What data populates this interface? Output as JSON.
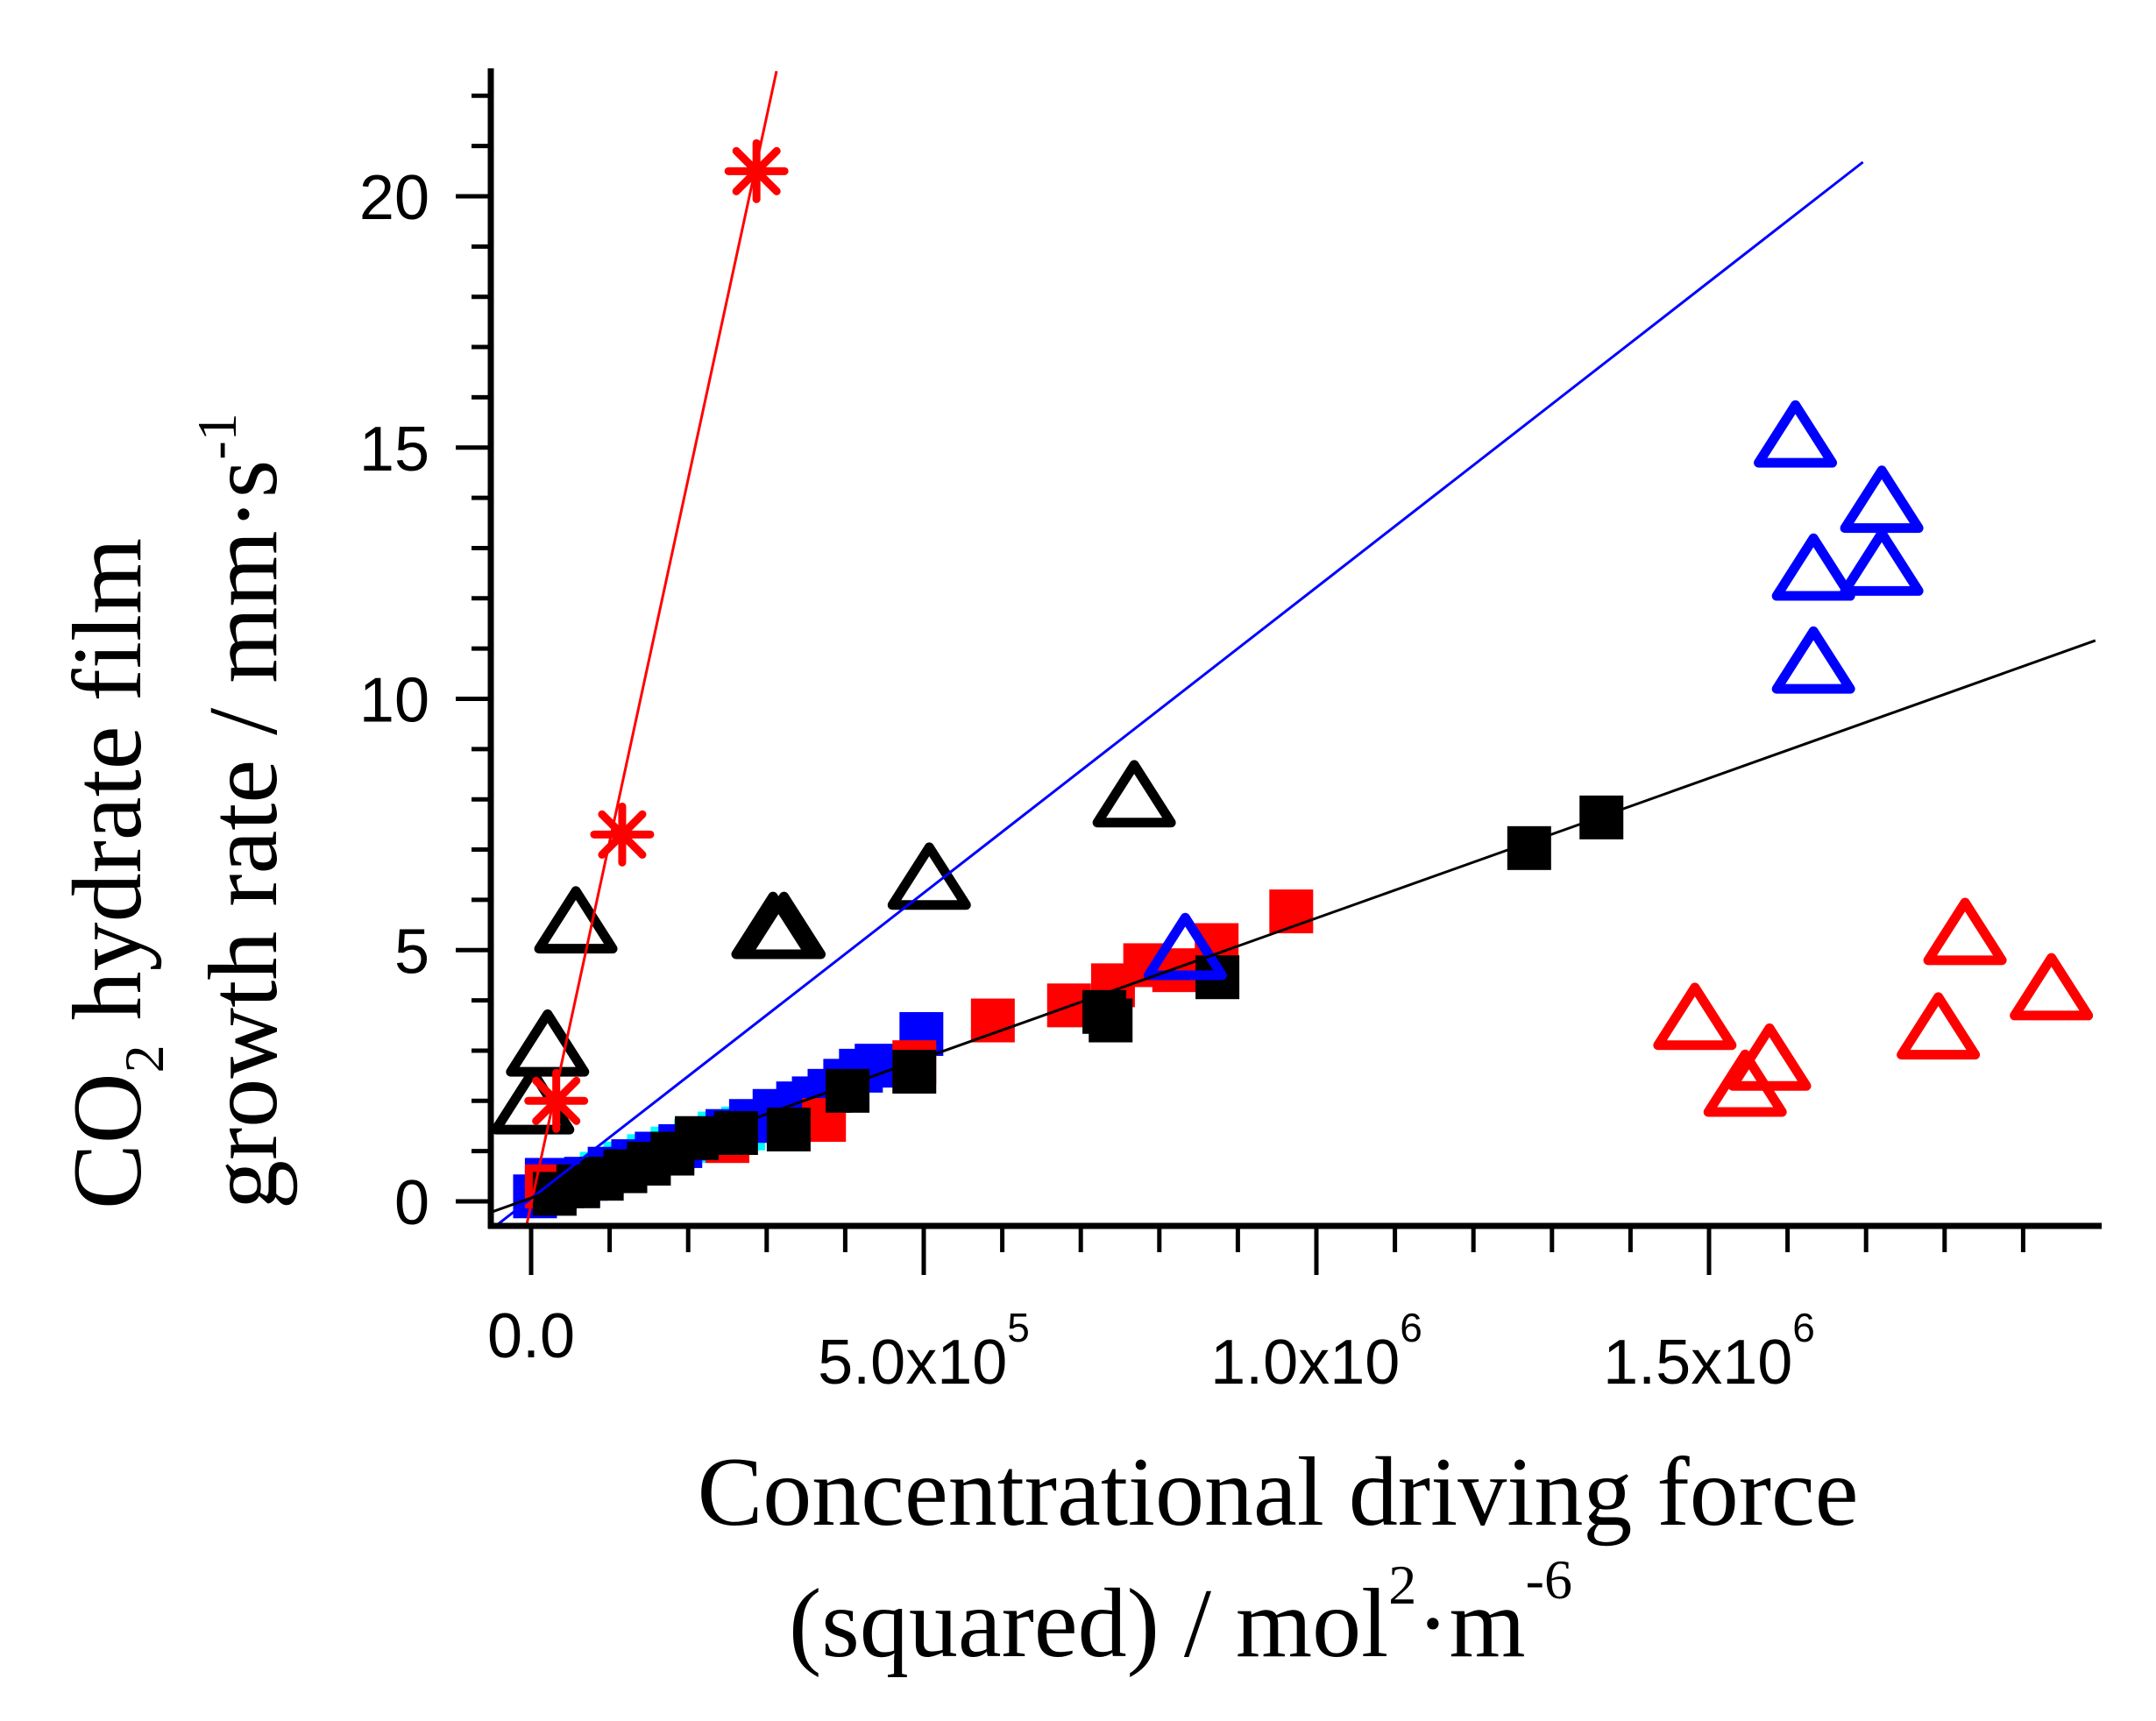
{
  "chart_data": {
    "type": "scatter",
    "title": "",
    "xlabel": "Concentrational driving force (squared) / mol²·m⁻⁶",
    "ylabel": "CO₂ hydrate film growth rate / mm·s⁻¹",
    "xlabel_parts": {
      "line1": "Concentrational driving force",
      "line2_main": "(squared) / mol",
      "line2_sup1": "2",
      "line2_dot": "·m",
      "line2_sup2": "-6"
    },
    "ylabel_parts": {
      "line1_main": "CO",
      "line1_sub": "2",
      "line1_rest": " hydrate film",
      "line2_main": "growth rate / mm·s",
      "line2_sup": "-1"
    },
    "xlim": [
      -50000,
      1990000
    ],
    "ylim": [
      -0.5,
      22.5
    ],
    "x_major_ticks": [
      0,
      500000,
      1000000,
      1500000
    ],
    "x_tick_labels": [
      {
        "mantissa": "0.0",
        "exp": ""
      },
      {
        "mantissa": "5.0x10",
        "exp": "5"
      },
      {
        "mantissa": "1.0x10",
        "exp": "6"
      },
      {
        "mantissa": "1.5x10",
        "exp": "6"
      }
    ],
    "x_minor_step": 100000,
    "y_major_ticks": [
      0,
      5,
      10,
      15,
      20
    ],
    "y_tick_labels": [
      "0",
      "5",
      "10",
      "15",
      "20"
    ],
    "y_minor_step": 1,
    "grid": false,
    "legend": "none",
    "fit_lines": [
      {
        "name": "red-fit",
        "color": "#ff0000",
        "x": [
          -6000,
          312500
        ],
        "y": [
          -0.49,
          22.49
        ]
      },
      {
        "name": "blue-fit",
        "color": "#0000ff",
        "x": [
          -46000,
          1696000
        ],
        "y": [
          -0.5,
          20.68
        ]
      },
      {
        "name": "black-fit",
        "color": "#000000",
        "x": [
          -48000,
          1992000
        ],
        "y": [
          -0.2,
          11.16
        ]
      }
    ],
    "series": [
      {
        "name": "cyan-squares",
        "marker": "square-filled",
        "color": "#00ffff",
        "points": [
          [
            60000,
            0.35
          ],
          [
            90000,
            0.55
          ],
          [
            120000,
            0.75
          ],
          [
            150000,
            0.9
          ],
          [
            180000,
            1.05
          ],
          [
            210000,
            1.2
          ],
          [
            240000,
            1.35
          ],
          [
            270000,
            1.45
          ]
        ]
      },
      {
        "name": "blue-squares",
        "marker": "square-filled",
        "color": "#0000ff",
        "points": [
          [
            5000,
            0.1
          ],
          [
            20000,
            0.2
          ],
          [
            40000,
            0.3
          ],
          [
            70000,
            0.45
          ],
          [
            100000,
            0.65
          ],
          [
            130000,
            0.8
          ],
          [
            160000,
            0.95
          ],
          [
            190000,
            1.1
          ],
          [
            220000,
            1.25
          ],
          [
            250000,
            1.4
          ],
          [
            280000,
            1.6
          ],
          [
            310000,
            1.8
          ],
          [
            340000,
            1.95
          ],
          [
            360000,
            2.05
          ],
          [
            380000,
            2.2
          ],
          [
            400000,
            2.4
          ],
          [
            420000,
            2.6
          ],
          [
            440000,
            2.7
          ],
          [
            497000,
            3.33
          ]
        ]
      },
      {
        "name": "blue-open-square",
        "marker": "square-open",
        "color": "#0000ff",
        "points": [
          [
            25000,
            0.35
          ]
        ]
      },
      {
        "name": "red-squares",
        "marker": "square-filled",
        "color": "#ff0000",
        "points": [
          [
            20000,
            0.3
          ],
          [
            250000,
            1.2
          ],
          [
            373000,
            1.62
          ],
          [
            488000,
            2.77
          ],
          [
            588000,
            3.6
          ],
          [
            685000,
            3.9
          ],
          [
            741000,
            4.3
          ],
          [
            782000,
            4.7
          ],
          [
            819000,
            4.6
          ],
          [
            873000,
            5.1
          ],
          [
            968000,
            5.77
          ]
        ]
      },
      {
        "name": "black-squares",
        "marker": "square-filled",
        "color": "#000000",
        "points": [
          [
            30000,
            0.15
          ],
          [
            60000,
            0.3
          ],
          [
            90000,
            0.45
          ],
          [
            120000,
            0.6
          ],
          [
            150000,
            0.75
          ],
          [
            180000,
            0.95
          ],
          [
            211000,
            1.26
          ],
          [
            261000,
            1.36
          ],
          [
            328000,
            1.43
          ],
          [
            403000,
            2.2
          ],
          [
            488000,
            2.58
          ],
          [
            730000,
            3.77
          ],
          [
            738000,
            3.6
          ],
          [
            874000,
            4.46
          ],
          [
            1271000,
            7.03
          ],
          [
            1363000,
            7.64
          ]
        ]
      },
      {
        "name": "black-triangles",
        "marker": "triangle-open",
        "color": "#000000",
        "points": [
          [
            2000,
            1.88
          ],
          [
            21000,
            3.03
          ],
          [
            57000,
            5.48
          ],
          [
            308000,
            5.37
          ],
          [
            322000,
            5.37
          ],
          [
            507000,
            6.35
          ],
          [
            768000,
            7.99
          ]
        ]
      },
      {
        "name": "blue-triangles",
        "marker": "triangle-open",
        "color": "#0000ff",
        "points": [
          [
            833000,
            4.95
          ],
          [
            1610000,
            15.15
          ],
          [
            1720000,
            13.85
          ],
          [
            1633000,
            12.5
          ],
          [
            1720000,
            12.6
          ],
          [
            1633000,
            10.65
          ]
        ]
      },
      {
        "name": "red-triangles",
        "marker": "triangle-open",
        "color": "#ff0000",
        "points": [
          [
            1482000,
            3.56
          ],
          [
            1577000,
            2.75
          ],
          [
            1546000,
            2.23
          ],
          [
            1826000,
            5.25
          ],
          [
            1792000,
            3.37
          ],
          [
            1936000,
            4.15
          ]
        ]
      },
      {
        "name": "red-asterisks",
        "marker": "asterisk",
        "color": "#ff0000",
        "points": [
          [
            32000,
            2.0
          ],
          [
            116000,
            7.3
          ],
          [
            287000,
            20.5
          ]
        ]
      }
    ]
  }
}
